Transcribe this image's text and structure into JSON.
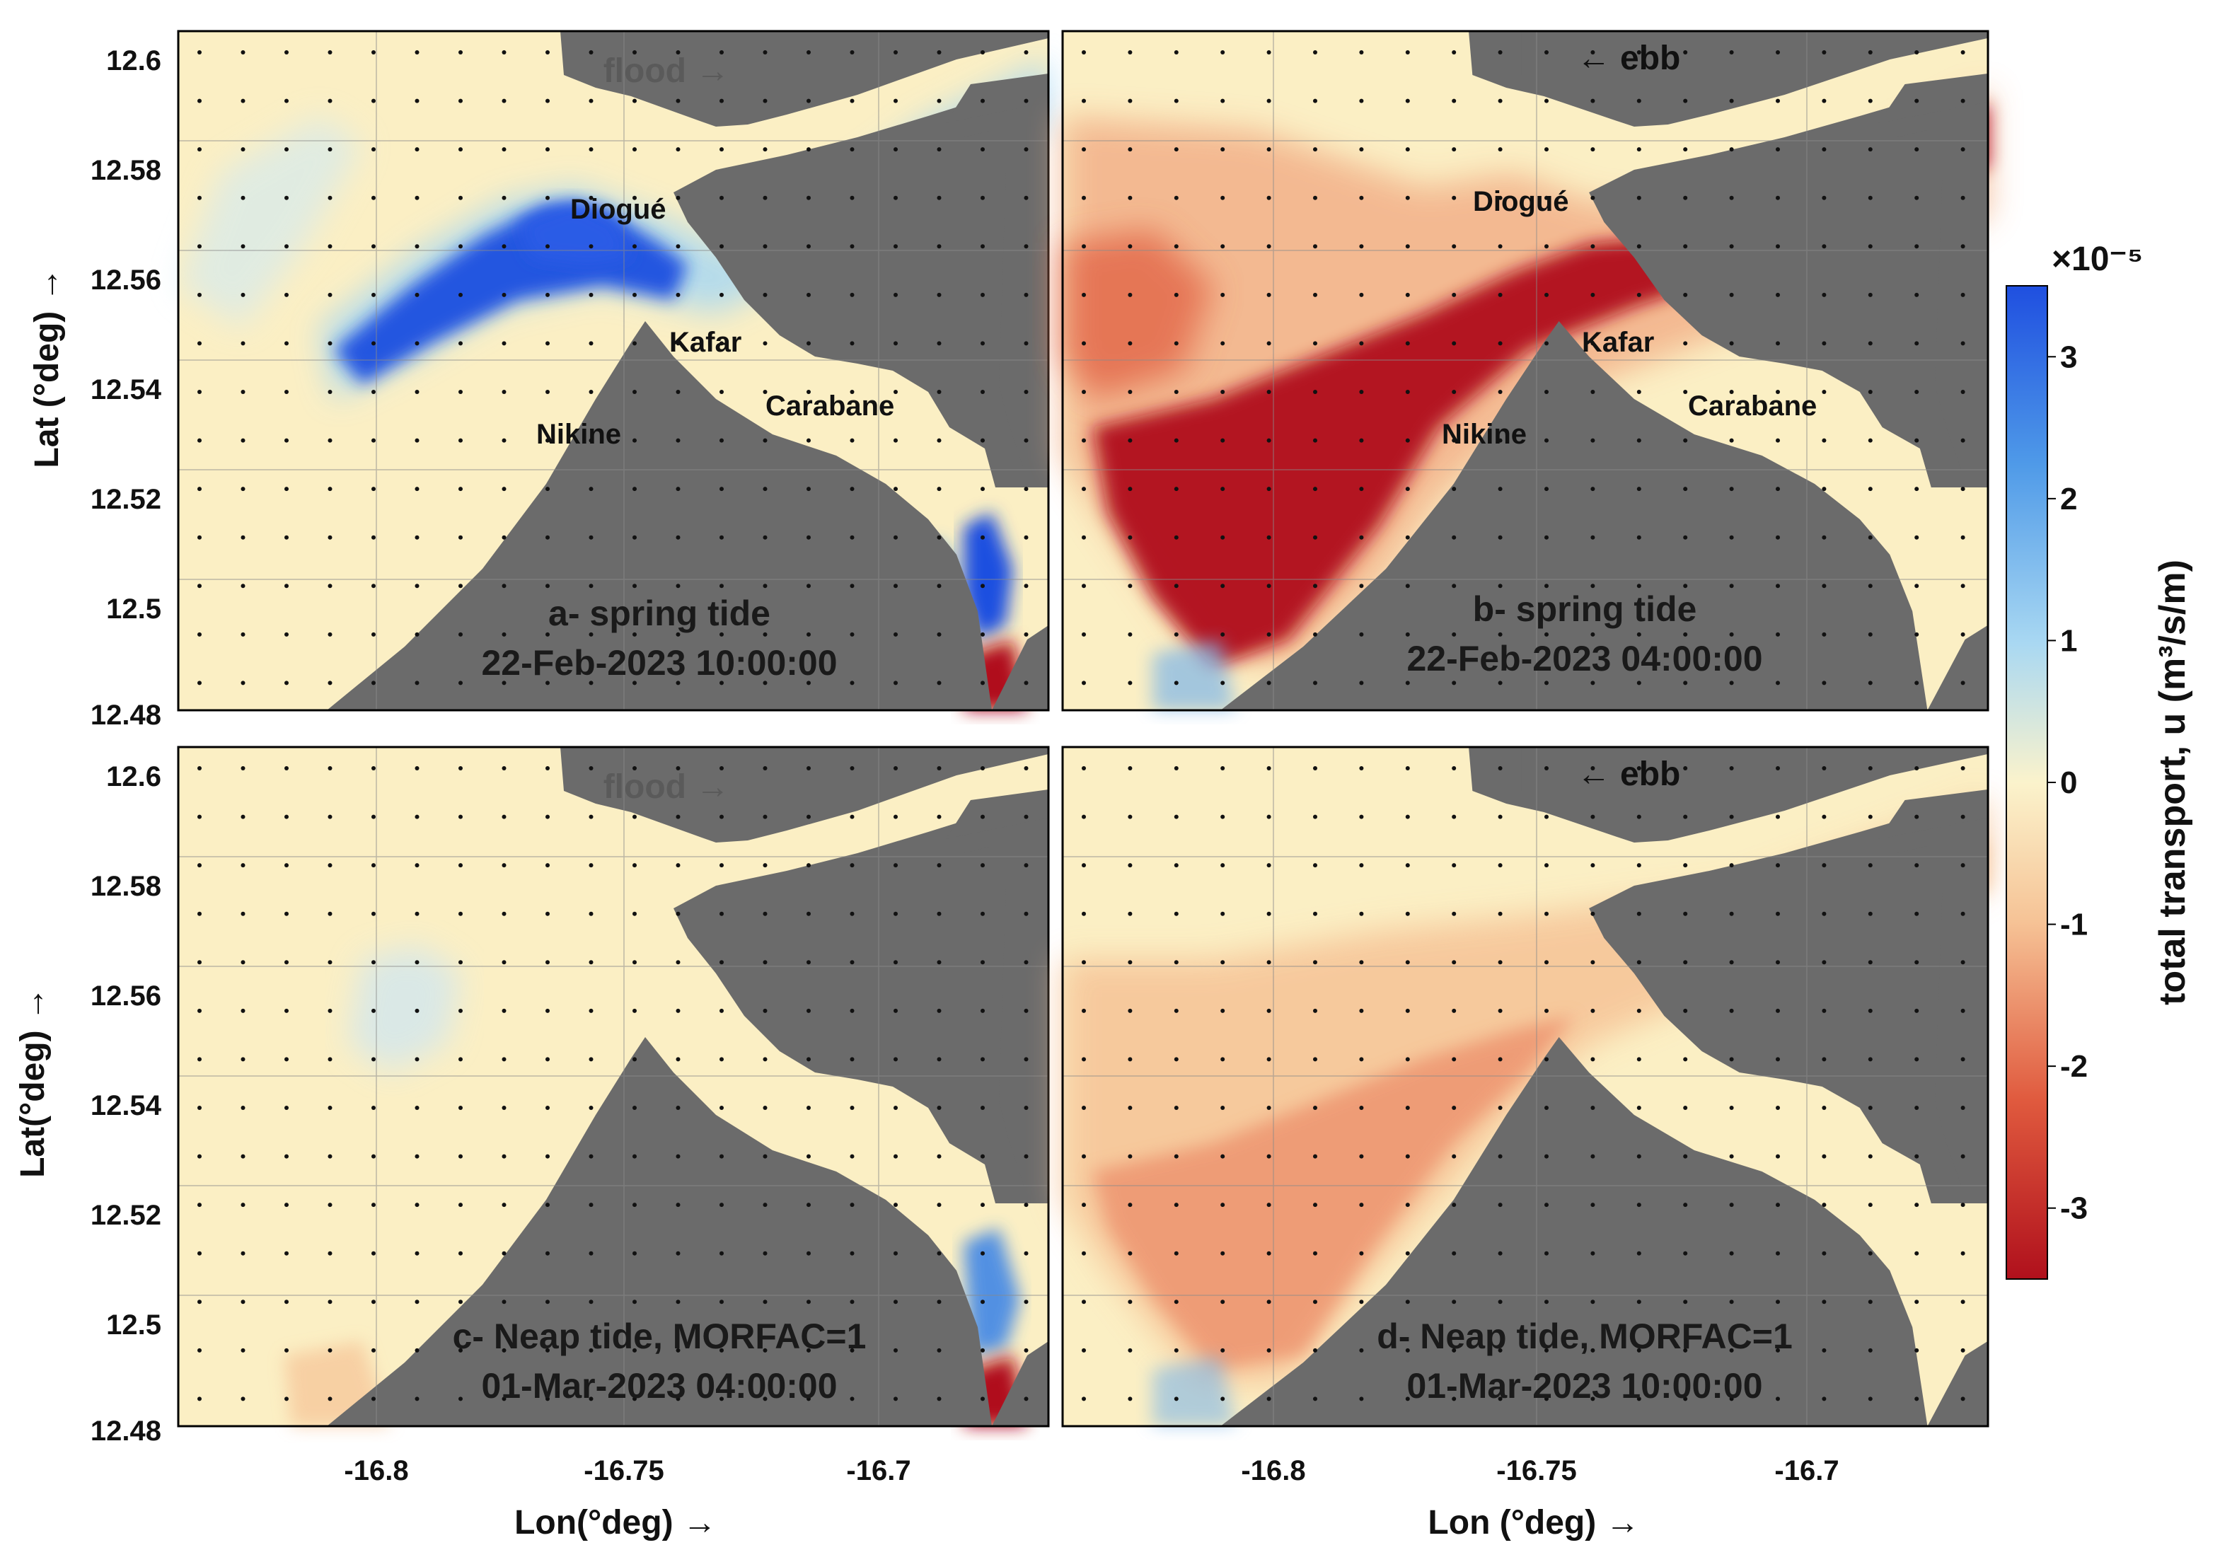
{
  "colors": {
    "land": "#6b6b6b",
    "water_base": "#fbefc4",
    "blue_strong": "#1f4fe0",
    "blue_light": "#a9d8f2",
    "red_strong": "#b0101c",
    "red_light": "#f3b48c",
    "frame": "#000000"
  },
  "axes": {
    "lat_ticks": [
      "12.6",
      "12.58",
      "12.56",
      "12.54",
      "12.52",
      "12.5",
      "12.48"
    ],
    "lon_ticks": [
      "-16.8",
      "-16.75",
      "-16.7"
    ],
    "lat_label_a": "Lat (°deg) →",
    "lat_label_c": "Lat(°deg) →",
    "lon_label_c": "Lon(°deg) →",
    "lon_label_d": "Lon (°deg) →"
  },
  "places": {
    "diogue": "Diogué",
    "kafar": "Kafar",
    "nikine": "Nikine",
    "carabane": "Carabane"
  },
  "tidal_labels": {
    "flood": "flood →",
    "ebb": "← ebb"
  },
  "panels": {
    "a": {
      "line1": "a- spring tide",
      "line2": "22-Feb-2023 10:00:00"
    },
    "b": {
      "line1": "b- spring tide",
      "line2": "22-Feb-2023 04:00:00"
    },
    "c": {
      "line1": "c- Neap tide, MORFAC=1",
      "line2": "01-Mar-2023 04:00:00"
    },
    "d": {
      "line1": "d- Neap tide, MORFAC=1",
      "line2": "01-Mar-2023 10:00:00"
    }
  },
  "colorbar": {
    "label": "total transport, u (m³/s/m)",
    "exponent": "×10⁻⁵",
    "ticks": [
      "3",
      "2",
      "1",
      "0",
      "-1",
      "-2",
      "-3"
    ],
    "min": -3.5,
    "max": 3.5
  }
}
